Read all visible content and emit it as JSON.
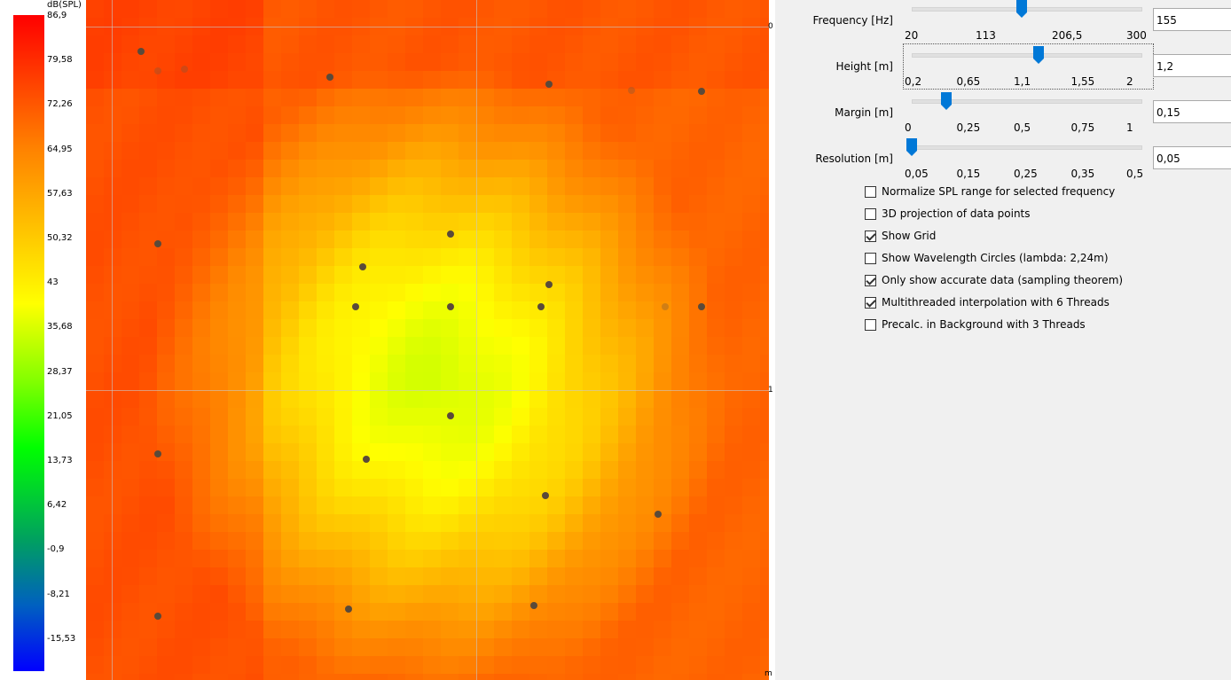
{
  "legend": {
    "unit": "dB(SPL)",
    "ticks": [
      "86,9",
      "79,58",
      "72,26",
      "64,95",
      "57,63",
      "50,32",
      "43",
      "35,68",
      "28,37",
      "21,05",
      "13,73",
      "6,42",
      "-0,9",
      "-8,21",
      "-15,53"
    ],
    "colors": [
      "#ff0000",
      "#ff8000",
      "#ffff00",
      "#00ff00",
      "#00a060",
      "#0000ff"
    ]
  },
  "map": {
    "axis_labels": [
      "0",
      "1",
      "m"
    ]
  },
  "sliders": [
    {
      "label": "Frequency [Hz]",
      "value": "155",
      "ticks": [
        "20",
        "113",
        "206,5",
        "300"
      ],
      "fraction": 0.482
    },
    {
      "label": "Height [m]",
      "value": "1,2",
      "ticks": [
        "0,2",
        "0,65",
        "1,1",
        "1,55",
        "2"
      ],
      "fraction": 0.556
    },
    {
      "label": "Margin [m]",
      "value": "0,15",
      "ticks": [
        "0",
        "0,25",
        "0,5",
        "0,75",
        "1"
      ],
      "fraction": 0.15
    },
    {
      "label": "Resolution [m]",
      "value": "0,05",
      "ticks": [
        "0,05",
        "0,15",
        "0,25",
        "0,35",
        "0,5"
      ],
      "fraction": 0.0
    }
  ],
  "options": [
    {
      "label": "Normalize SPL range for selected frequency",
      "checked": false
    },
    {
      "label": "3D projection of data points",
      "checked": false
    },
    {
      "label": "Show Grid",
      "checked": true
    },
    {
      "label": "Show Wavelength Circles (lambda: 2,24m)",
      "checked": false
    },
    {
      "label": "Only show accurate data (sampling theorem)",
      "checked": true
    },
    {
      "label": "Multithreaded interpolation with 6 Threads",
      "checked": true
    },
    {
      "label": "Precalc. in Background with 3 Threads",
      "checked": false
    }
  ]
}
